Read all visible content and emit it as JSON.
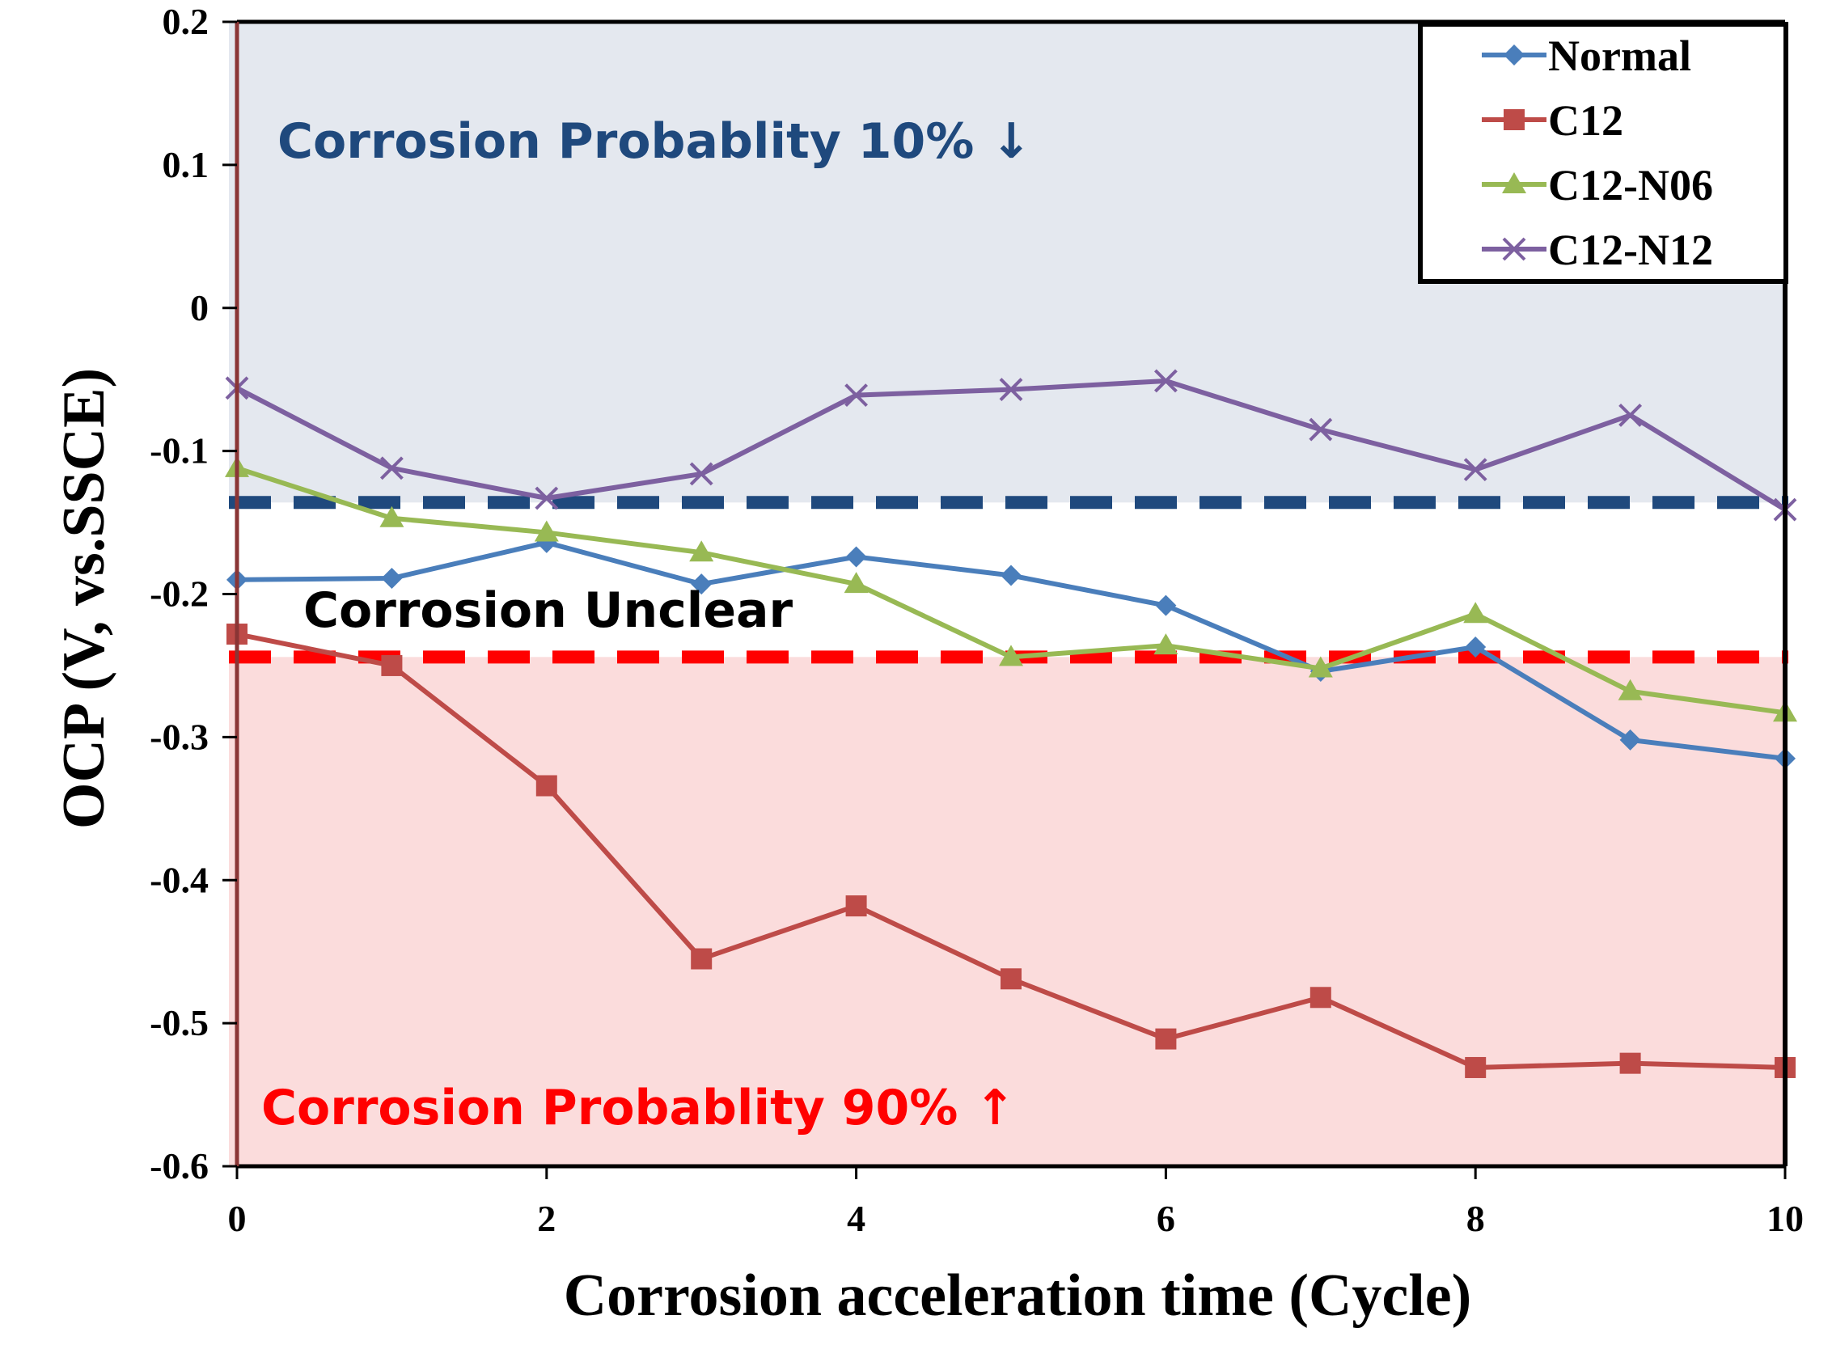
{
  "chart_data": {
    "type": "line",
    "title": "",
    "xlabel": "Corrosion acceleration time (Cycle)",
    "ylabel": "OCP (V, vs.SSCE)",
    "xlim": [
      0,
      10
    ],
    "ylim": [
      -0.6,
      0.2
    ],
    "x_ticks": [
      0,
      2,
      4,
      6,
      8,
      10
    ],
    "x_tick_labels": [
      "0",
      "2",
      "4",
      "6",
      "8",
      "10"
    ],
    "y_ticks": [
      0.2,
      0.1,
      0,
      -0.1,
      -0.2,
      -0.3,
      -0.4,
      -0.5,
      -0.6
    ],
    "y_tick_labels": [
      "0.2",
      "0.1",
      "0",
      "-0.1",
      "-0.2",
      "-0.3",
      "-0.4",
      "-0.5",
      "-0.6"
    ],
    "grid": false,
    "legend_position": "top-right",
    "x": [
      0,
      1,
      2,
      3,
      4,
      5,
      6,
      7,
      8,
      9,
      10
    ],
    "series": [
      {
        "name": "Normal",
        "color": "#4a7ebb",
        "marker": "diamond",
        "values": [
          -0.19,
          -0.189,
          -0.164,
          -0.193,
          -0.174,
          -0.187,
          -0.208,
          -0.254,
          -0.237,
          -0.302,
          -0.315
        ]
      },
      {
        "name": "C12",
        "color": "#be4b48",
        "marker": "square",
        "values": [
          -0.228,
          -0.25,
          -0.334,
          -0.455,
          -0.418,
          -0.469,
          -0.511,
          -0.482,
          -0.531,
          -0.528,
          -0.531
        ]
      },
      {
        "name": "C12-N06",
        "color": "#98b954",
        "marker": "triangle",
        "values": [
          -0.112,
          -0.147,
          -0.157,
          -0.171,
          -0.193,
          -0.244,
          -0.236,
          -0.252,
          -0.214,
          -0.268,
          -0.283
        ]
      },
      {
        "name": "C12-N12",
        "color": "#7d60a0",
        "marker": "x",
        "values": [
          -0.056,
          -0.112,
          -0.133,
          -0.116,
          -0.061,
          -0.057,
          -0.051,
          -0.085,
          -0.113,
          -0.075,
          -0.141
        ]
      }
    ],
    "thresholds": [
      {
        "name": "upper-threshold",
        "value": -0.136,
        "color": "#1f497d"
      },
      {
        "name": "lower-threshold",
        "value": -0.244,
        "color": "#ff0000"
      }
    ],
    "zones": [
      {
        "name": "low-probability-zone",
        "from": -0.136,
        "to": 0.2,
        "fill": "#e4e8ef"
      },
      {
        "name": "high-probability-zone",
        "from": -0.6,
        "to": -0.244,
        "fill": "#fbdcdc"
      }
    ],
    "annotations": [
      {
        "name": "upper-zone-label",
        "text": "Corrosion Probablity 10% ↓",
        "color": "#1f497d"
      },
      {
        "name": "middle-zone-label",
        "text": "Corrosion Unclear",
        "color": "#000000"
      },
      {
        "name": "lower-zone-label",
        "text": "Corrosion Probablity 90% ↑",
        "color": "#ff0000"
      }
    ]
  }
}
